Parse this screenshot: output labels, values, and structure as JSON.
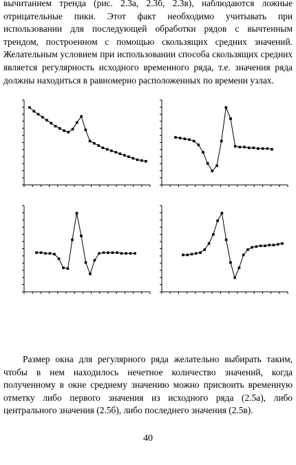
{
  "paragraphs": [
    "вычитанием тренда (рис. 2.3а, 2.3б, 2.3в), наблюдаются ложные отрицательные пики. Этот факт необходимо учитывать при использовании для последующей обработки рядов с вычтенным трендом, построенном с помощью скользящих средних значений. Желательным условием при использовании способа скользящих средних является регулярность исходного временного ряда, т.е. значения ряда должны находиться в равномерно расположенных по времени узлах.",
    "Размер окна для регулярного ряда желательно выбирать таким, чтобы в нем находилось нечетное количество значений, когда полученному в окне среднему значению можно присвоить временную отметку либо первого значения из исходного ряда (2.5а), либо центрального значения (2.5б), либо последнего значения (2.5в)."
  ],
  "page_number": "40",
  "chart_data": [
    {
      "type": "line",
      "color": "#000000",
      "ylim": [
        0,
        110
      ],
      "values": [
        100,
        95,
        91,
        87,
        83,
        79,
        75,
        72,
        69,
        67,
        71,
        80,
        88,
        70,
        55,
        52,
        49,
        46,
        44,
        42,
        40,
        38,
        36,
        34,
        32,
        30,
        29,
        28
      ]
    },
    {
      "type": "line",
      "color": "#000000",
      "ylim": [
        0,
        110
      ],
      "values": [
        60,
        59,
        58,
        57,
        55,
        50,
        40,
        25,
        15,
        22,
        55,
        100,
        85,
        48,
        47,
        47,
        46,
        46,
        45,
        45,
        45,
        44
      ]
    },
    {
      "type": "line",
      "color": "#000000",
      "ylim": [
        0,
        110
      ],
      "values": [
        48,
        48,
        47,
        47,
        46,
        40,
        28,
        27,
        65,
        100,
        70,
        35,
        20,
        38,
        47,
        48,
        48,
        48,
        48,
        47,
        47,
        47,
        47
      ]
    },
    {
      "type": "line",
      "color": "#000000",
      "ylim": [
        0,
        110
      ],
      "values": [
        45,
        45,
        46,
        47,
        48,
        52,
        60,
        72,
        90,
        100,
        65,
        35,
        15,
        28,
        45,
        52,
        55,
        56,
        57,
        57,
        58,
        58,
        59,
        60
      ]
    }
  ]
}
